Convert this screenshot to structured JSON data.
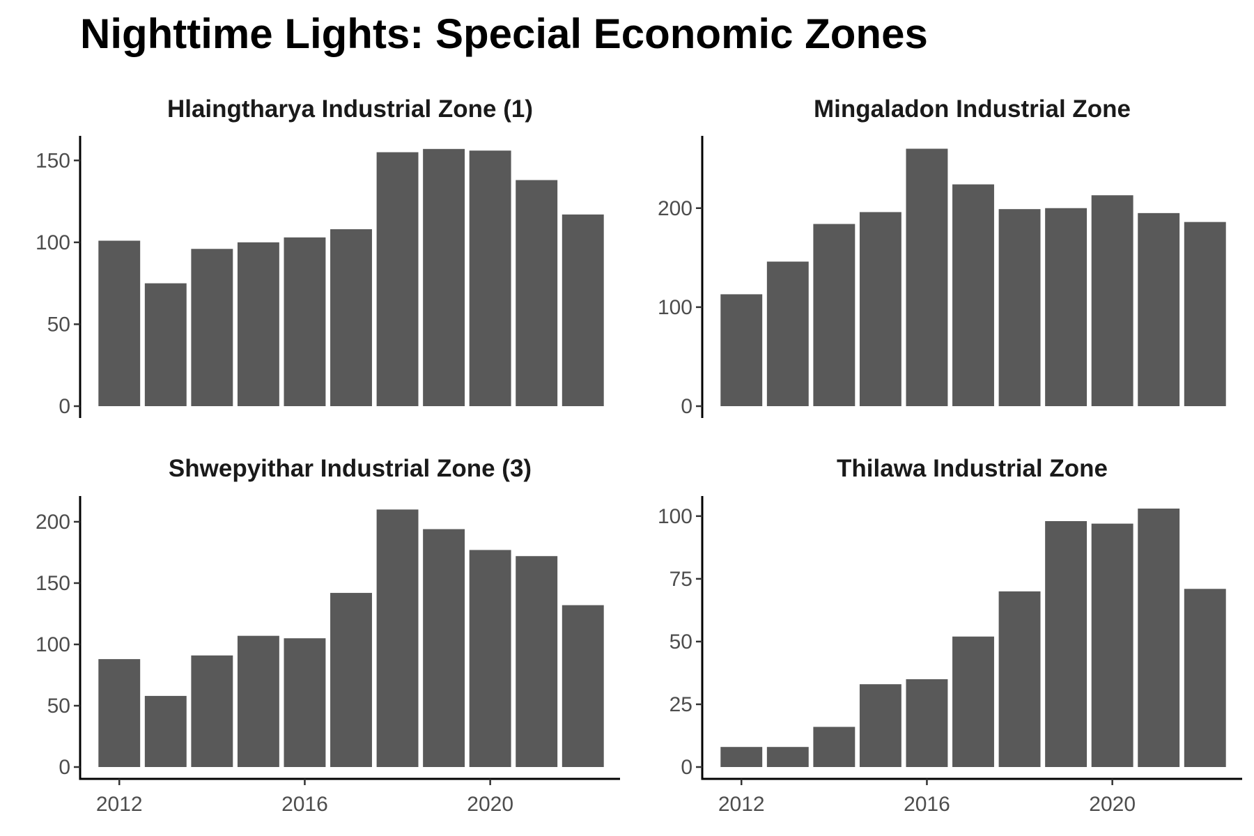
{
  "title": "Nighttime Lights: Special Economic Zones",
  "colors": {
    "bar": "#595959",
    "axis": "#000000",
    "tick_text": "#4d4d4d"
  },
  "chart_data": [
    {
      "type": "bar",
      "title": "Hlaingtharya Industrial Zone (1)",
      "x": [
        2012,
        2013,
        2014,
        2015,
        2016,
        2017,
        2018,
        2019,
        2020,
        2021,
        2022
      ],
      "values": [
        101,
        75,
        96,
        100,
        103,
        108,
        155,
        157,
        156,
        138,
        117
      ],
      "yticks": [
        0,
        50,
        100,
        150
      ],
      "xticks": [
        2012,
        2016,
        2020
      ],
      "ylim": [
        0,
        165
      ],
      "xlim": [
        2011.2,
        2022.8
      ]
    },
    {
      "type": "bar",
      "title": "Mingaladon Industrial Zone",
      "x": [
        2012,
        2013,
        2014,
        2015,
        2016,
        2017,
        2018,
        2019,
        2020,
        2021,
        2022
      ],
      "values": [
        113,
        146,
        184,
        196,
        260,
        224,
        199,
        200,
        213,
        195,
        186
      ],
      "yticks": [
        0,
        100,
        200
      ],
      "xticks": [
        2012,
        2016,
        2020
      ],
      "ylim": [
        0,
        273
      ],
      "xlim": [
        2011.2,
        2022.8
      ]
    },
    {
      "type": "bar",
      "title": "Shwepyithar Industrial Zone (3)",
      "x": [
        2012,
        2013,
        2014,
        2015,
        2016,
        2017,
        2018,
        2019,
        2020,
        2021,
        2022
      ],
      "values": [
        88,
        58,
        91,
        107,
        105,
        142,
        210,
        194,
        177,
        172,
        132
      ],
      "yticks": [
        0,
        50,
        100,
        150,
        200
      ],
      "xticks": [
        2012,
        2016,
        2020
      ],
      "ylim": [
        0,
        221
      ],
      "xlim": [
        2011.2,
        2022.8
      ]
    },
    {
      "type": "bar",
      "title": "Thilawa Industrial Zone",
      "x": [
        2012,
        2013,
        2014,
        2015,
        2016,
        2017,
        2018,
        2019,
        2020,
        2021,
        2022
      ],
      "values": [
        8,
        8,
        16,
        33,
        35,
        52,
        70,
        98,
        97,
        103,
        71
      ],
      "yticks": [
        0,
        25,
        50,
        75,
        100
      ],
      "xticks": [
        2012,
        2016,
        2020
      ],
      "ylim": [
        0,
        108
      ],
      "xlim": [
        2011.2,
        2022.8
      ]
    }
  ]
}
